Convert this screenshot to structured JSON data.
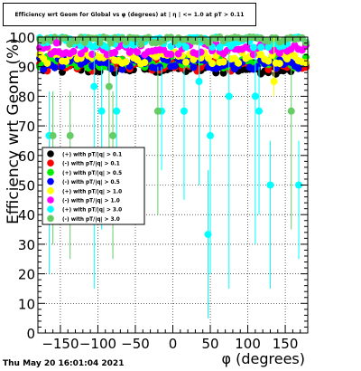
{
  "title": "Efficiency wrt Geom for Global vs φ (degrees) at | η | <= 1.0 at pT > 0.11",
  "timestamp": "Thu May 20 16:01:04 2021",
  "chart_data": {
    "type": "scatter",
    "xlabel": "φ (degrees)",
    "ylabel": "Efficiency wrt Geom (%)",
    "xlim": [
      -180,
      180
    ],
    "ylim": [
      0,
      100
    ],
    "x_ticks": [
      -150,
      -100,
      -50,
      0,
      50,
      100,
      150
    ],
    "x_tick_labels": [
      "−150",
      "−100",
      "−50",
      "0",
      "50",
      "100",
      "150"
    ],
    "y_ticks": [
      0,
      10,
      20,
      30,
      40,
      50,
      60,
      70,
      80,
      90,
      100
    ],
    "y_tick_labels": [
      "0",
      "10",
      "20",
      "30",
      "40",
      "50",
      "60",
      "70",
      "80",
      "90",
      "100"
    ],
    "grid": true,
    "legend_position": "middle-left",
    "series": [
      {
        "name": "(+) with pT/|q| > 0.1",
        "color": "#000000",
        "base": 89.5
      },
      {
        "name": "(-) with pT/|q| > 0.1",
        "color": "#ff0000",
        "base": 90.5
      },
      {
        "name": "(+) with pT/|q| > 0.5",
        "color": "#00ee00",
        "base": 91.5
      },
      {
        "name": "(-) with pT/|q| > 0.5",
        "color": "#0000ff",
        "base": 91
      },
      {
        "name": "(+) with pT/|q| > 1.0",
        "color": "#ffff00",
        "base": 93
      },
      {
        "name": "(-) with pT/|q| > 1.0",
        "color": "#ff00ff",
        "base": 96
      },
      {
        "name": "(+) with pT/|q| > 3.0",
        "color": "#00ffff",
        "base": 98.5
      },
      {
        "name": "(-) with pT/|q| > 3.0",
        "color": "#66cc66",
        "base": 99.5
      }
    ],
    "outliers": [
      {
        "series": 6,
        "x": -165,
        "y": 66.7,
        "lo": 20,
        "hi": 66.7
      },
      {
        "series": 6,
        "x": -105,
        "y": 83.3,
        "lo": 15,
        "hi": 83.3
      },
      {
        "series": 6,
        "x": -95,
        "y": 75,
        "lo": 35,
        "hi": 75
      },
      {
        "series": 6,
        "x": -75,
        "y": 75,
        "lo": 40,
        "hi": 75
      },
      {
        "series": 6,
        "x": -15,
        "y": 75,
        "lo": 55,
        "hi": 75
      },
      {
        "series": 6,
        "x": 15,
        "y": 75,
        "lo": 45,
        "hi": 75
      },
      {
        "series": 6,
        "x": 35,
        "y": 85,
        "lo": 50,
        "hi": 85
      },
      {
        "series": 6,
        "x": 47,
        "y": 33.3,
        "lo": 5,
        "hi": 40
      },
      {
        "series": 6,
        "x": 50,
        "y": 66.7,
        "lo": 20,
        "hi": 66.7
      },
      {
        "series": 6,
        "x": 75,
        "y": 80,
        "lo": 15,
        "hi": 80
      },
      {
        "series": 6,
        "x": 110,
        "y": 80,
        "lo": 30,
        "hi": 80
      },
      {
        "series": 6,
        "x": 115,
        "y": 75,
        "lo": 40,
        "hi": 75
      },
      {
        "series": 6,
        "x": 130,
        "y": 50,
        "lo": 15,
        "hi": 50
      },
      {
        "series": 6,
        "x": 168,
        "y": 50,
        "lo": 25,
        "hi": 50
      },
      {
        "series": 7,
        "x": -160,
        "y": 66.7,
        "lo": 30,
        "hi": 66.7
      },
      {
        "series": 7,
        "x": -137,
        "y": 66.7,
        "lo": 25,
        "hi": 66.7
      },
      {
        "series": 7,
        "x": -85,
        "y": 83.3,
        "lo": 45,
        "hi": 83.3
      },
      {
        "series": 7,
        "x": -80,
        "y": 66.7,
        "lo": 25,
        "hi": 66.7
      },
      {
        "series": 7,
        "x": -20,
        "y": 75,
        "lo": 40,
        "hi": 75
      },
      {
        "series": 7,
        "x": 158,
        "y": 75,
        "lo": 35,
        "hi": 75
      },
      {
        "series": 4,
        "x": 135,
        "y": 85,
        "lo": 80,
        "hi": 85
      },
      {
        "series": 5,
        "x": -155,
        "y": 98,
        "lo": 97,
        "hi": 99
      }
    ]
  }
}
